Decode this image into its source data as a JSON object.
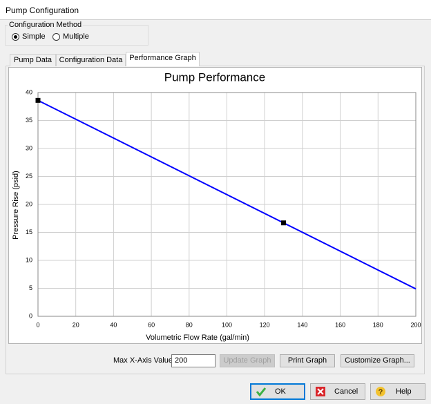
{
  "window": {
    "title": "Pump Configuration"
  },
  "configuration_method": {
    "label": "Configuration Method",
    "options": [
      "Simple",
      "Multiple"
    ],
    "selected": 0
  },
  "tabs": {
    "items": [
      "Pump Data",
      "Configuration Data",
      "Performance Graph"
    ],
    "active": 2
  },
  "chart_data": {
    "type": "line",
    "title": "Pump Performance",
    "x_label": "Volumetric Flow Rate (gal/min)",
    "y_label": "Pressure Rise (psid)",
    "xlim": [
      0,
      200
    ],
    "xticks": [
      0,
      20,
      40,
      60,
      80,
      100,
      120,
      140,
      160,
      180,
      200
    ],
    "ylim": [
      0,
      40
    ],
    "yticks": [
      0,
      5,
      10,
      15,
      20,
      25,
      30,
      35,
      40
    ],
    "grid": true,
    "series": [
      {
        "style": "line",
        "color": "#0000ff",
        "x": [
          0,
          200
        ],
        "values": [
          38.6,
          4.9
        ]
      },
      {
        "style": "markers",
        "color": "#000000",
        "x": [
          0,
          130
        ],
        "values": [
          38.6,
          16.7
        ]
      }
    ]
  },
  "graph_controls": {
    "max_x_label": "Max X-Axis Value:",
    "max_x_value": 200,
    "buttons": [
      "Update Graph",
      "Print Graph",
      "Customize Graph..."
    ],
    "disabled": [
      0
    ]
  },
  "dialog_buttons": [
    "OK",
    "Cancel",
    "Help"
  ]
}
